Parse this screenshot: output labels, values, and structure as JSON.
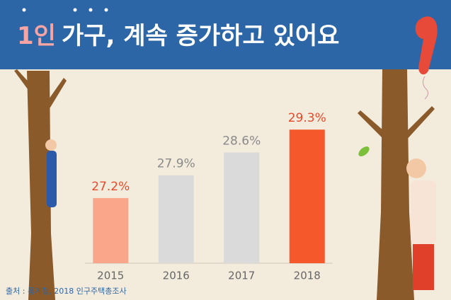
{
  "chart_data": {
    "type": "bar",
    "title_parts": [
      "1인",
      "가구, 계속 증가하고 있어요"
    ],
    "categories": [
      "2015",
      "2016",
      "2017",
      "2018"
    ],
    "values": [
      27.2,
      27.9,
      28.6,
      29.3
    ],
    "value_labels": [
      "27.2%",
      "27.9%",
      "28.6%",
      "29.3%"
    ],
    "colors": [
      "#f9a68a",
      "#dadada",
      "#dadada",
      "#f5582a"
    ],
    "label_colors": [
      "#e8492a",
      "#8a8a8a",
      "#8a8a8a",
      "#e8492a"
    ],
    "ylim": [
      25.2,
      29.5
    ],
    "source": "출처 : 통계청, 2018 인구주택총조사"
  }
}
